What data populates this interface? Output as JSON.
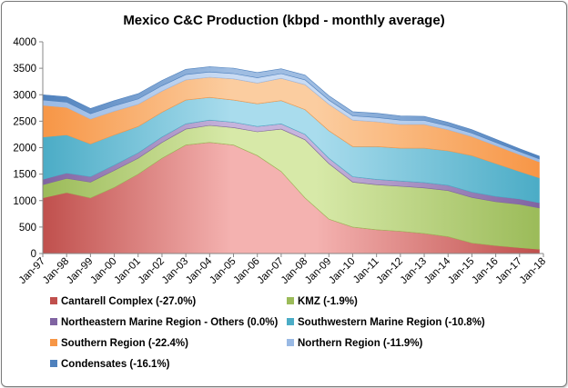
{
  "chart_data": {
    "type": "area",
    "title": "Mexico C&C Production (kbpd - monthly average)",
    "xlabel": "",
    "ylabel": "",
    "ylim": [
      0,
      4000
    ],
    "yticks": [
      "0",
      "500",
      "1000",
      "1500",
      "2000",
      "2500",
      "3000",
      "3500",
      "4000"
    ],
    "xlim": [
      1997,
      2018
    ],
    "xticks": [
      "Jan-97",
      "Jan-98",
      "Jan-99",
      "Jan-00",
      "Jan-01",
      "Jan-02",
      "Jan-03",
      "Jan-04",
      "Jan-05",
      "Jan-06",
      "Jan-07",
      "Jan-08",
      "Jan-09",
      "Jan-10",
      "Jan-11",
      "Jan-12",
      "Jan-13",
      "Jan-14",
      "Jan-15",
      "Jan-16",
      "Jan-17",
      "Jan-18"
    ],
    "grid": false,
    "legend_position": "bottom",
    "stacked": true,
    "x": [
      "Jan-97",
      "Jan-98",
      "Jan-99",
      "Jan-00",
      "Jan-01",
      "Jan-02",
      "Jan-03",
      "Jan-04",
      "Jan-05",
      "Jan-06",
      "Jan-07",
      "Jan-08",
      "Jan-09",
      "Jan-10",
      "Jan-11",
      "Jan-12",
      "Jan-13",
      "Jan-14",
      "Jan-15",
      "Jan-16",
      "Jan-17",
      "Nov-17"
    ],
    "series": [
      {
        "name": "Cantarell Complex (-27.0%)",
        "color": "#c0504d",
        "highlight": "#f4b2b0",
        "values": [
          1050,
          1150,
          1050,
          1250,
          1500,
          1800,
          2050,
          2100,
          2050,
          1850,
          1550,
          1050,
          650,
          500,
          450,
          420,
          380,
          320,
          200,
          150,
          110,
          80
        ]
      },
      {
        "name": "KMZ (-1.9%)",
        "color": "#9bbb59",
        "highlight": "#d7e9a8",
        "values": [
          250,
          270,
          300,
          320,
          300,
          300,
          300,
          320,
          330,
          450,
          800,
          1100,
          1050,
          850,
          850,
          850,
          860,
          870,
          860,
          830,
          820,
          780
        ]
      },
      {
        "name": "Northeastern Marine Region - Others (0.0%)",
        "color": "#8064a2",
        "highlight": "#c6b4dc",
        "values": [
          100,
          100,
          100,
          100,
          100,
          100,
          100,
          100,
          100,
          100,
          100,
          100,
          100,
          100,
          100,
          100,
          100,
          100,
          100,
          100,
          100,
          100
        ]
      },
      {
        "name": "Southwestern Marine Region (-10.8%)",
        "color": "#4bacc6",
        "highlight": "#a9dced",
        "values": [
          800,
          720,
          620,
          570,
          500,
          470,
          450,
          430,
          420,
          430,
          440,
          470,
          520,
          570,
          620,
          620,
          650,
          650,
          690,
          620,
          520,
          470
        ]
      },
      {
        "name": "Southern Region (-22.4%)",
        "color": "#f79646",
        "highlight": "#fbcda0",
        "values": [
          600,
          520,
          470,
          450,
          420,
          400,
          380,
          380,
          400,
          390,
          420,
          470,
          500,
          500,
          470,
          450,
          450,
          400,
          360,
          340,
          320,
          300
        ]
      },
      {
        "name": "Northern Region (-11.9%)",
        "color": "#99b9e4",
        "highlight": "#c9dbf3",
        "values": [
          100,
          100,
          100,
          100,
          100,
          100,
          100,
          100,
          100,
          100,
          90,
          90,
          80,
          80,
          80,
          80,
          75,
          70,
          65,
          60,
          55,
          55
        ]
      },
      {
        "name": "Condensates (-16.1%)",
        "color": "#4f81bd",
        "highlight": "#9fbde2",
        "values": [
          100,
          100,
          100,
          100,
          100,
          100,
          100,
          100,
          100,
          100,
          90,
          90,
          80,
          80,
          80,
          80,
          75,
          70,
          65,
          60,
          55,
          55
        ]
      }
    ],
    "x_numeric": [
      1997,
      1998,
      1999,
      2000,
      2001,
      2002,
      2003,
      2004,
      2005,
      2006,
      2007,
      2008,
      2009,
      2010,
      2011,
      2012,
      2013,
      2014,
      2015,
      2016,
      2017,
      2017.83
    ]
  }
}
